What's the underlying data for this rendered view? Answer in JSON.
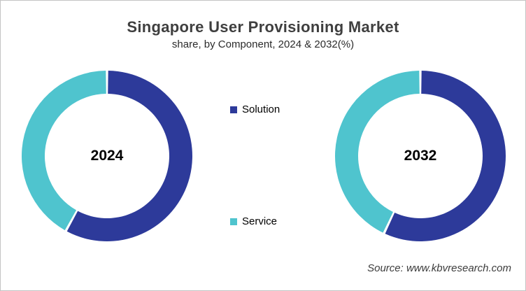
{
  "header": {
    "title": "Singapore User Provisioning Market",
    "subtitle": "share, by Component, 2024 & 2032(%)"
  },
  "legend": {
    "position": "center-between-donuts",
    "items": [
      {
        "label": "Solution",
        "color": "#2d3a9a"
      },
      {
        "label": "Service",
        "color": "#4fc4ce"
      }
    ]
  },
  "footer": {
    "source": "Source: www.kbvresearch.com"
  },
  "colors": {
    "solution": "#2d3a9a",
    "service": "#4fc4ce",
    "frame_border": "#c4c4c4",
    "title_text": "#3f3f3f",
    "background": "#ffffff"
  },
  "chart_data": [
    {
      "type": "pie",
      "subtype": "donut",
      "center_label": "2024",
      "categories": [
        "Solution",
        "Service"
      ],
      "values": [
        58,
        42
      ],
      "unit": "%",
      "colors": [
        "#2d3a9a",
        "#4fc4ce"
      ],
      "start_angle_deg": 0,
      "direction": "clockwise",
      "inner_radius_ratio": 0.73,
      "data_labels_shown": false
    },
    {
      "type": "pie",
      "subtype": "donut",
      "center_label": "2032",
      "categories": [
        "Solution",
        "Service"
      ],
      "values": [
        57,
        43
      ],
      "unit": "%",
      "colors": [
        "#2d3a9a",
        "#4fc4ce"
      ],
      "start_angle_deg": 0,
      "direction": "clockwise",
      "inner_radius_ratio": 0.73,
      "data_labels_shown": false
    }
  ]
}
